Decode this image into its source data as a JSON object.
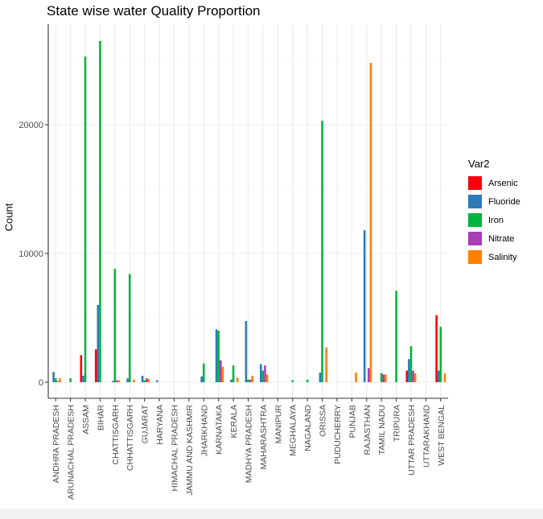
{
  "chart_data": {
    "type": "bar",
    "title": "State wise water Quality Proportion",
    "xlabel": "",
    "ylabel": "Count",
    "ylim": [
      0,
      28000
    ],
    "yticks": [
      0,
      10000,
      20000
    ],
    "ytick_labels": [
      "0",
      "10000",
      "20000"
    ],
    "grid": true,
    "legend_title": "Var2",
    "legend_position": "right",
    "categories": [
      "ANDHRA PRADESH",
      "ARUNACHAL PRADESH",
      "ASSAM",
      "BIHAR",
      "CHATTISGARH",
      "CHHATTISGARH",
      "GUJARAT",
      "HARYANA",
      "HIMACHAL PRADESH",
      "JAMMU AND KASHMIR",
      "JHARKHAND",
      "KARNATAKA",
      "KERALA",
      "MADHYA PRADESH",
      "MAHARASHTRA",
      "MANIPUR",
      "MEGHALAYA",
      "NAGALAND",
      "ORISSA",
      "PUDUCHERRY",
      "PUNJAB",
      "RAJASTHAN",
      "TAMIL NADU",
      "TRIPURA",
      "UTTAR PRADESH",
      "UTTARAKHAND",
      "WEST BENGAL"
    ],
    "series": [
      {
        "name": "Arsenic",
        "color": "#F8020D",
        "values": [
          0,
          0,
          2100,
          2550,
          0,
          0,
          0,
          0,
          0,
          0,
          0,
          0,
          0,
          0,
          0,
          0,
          0,
          0,
          0,
          0,
          0,
          0,
          0,
          0,
          900,
          0,
          5200
        ]
      },
      {
        "name": "Fluoride",
        "color": "#2C7BB6",
        "values": [
          800,
          0,
          500,
          6000,
          100,
          300,
          500,
          150,
          0,
          0,
          450,
          4100,
          200,
          4750,
          1400,
          0,
          0,
          0,
          750,
          0,
          0,
          11800,
          0,
          0,
          1800,
          0,
          900
        ]
      },
      {
        "name": "Iron",
        "color": "#00B43C",
        "values": [
          300,
          300,
          25300,
          26500,
          8800,
          8400,
          150,
          0,
          0,
          0,
          1450,
          4000,
          1300,
          200,
          900,
          0,
          150,
          200,
          20300,
          0,
          0,
          0,
          700,
          7100,
          2800,
          0,
          4300
        ]
      },
      {
        "name": "Nitrate",
        "color": "#A83EB4",
        "values": [
          80,
          0,
          0,
          0,
          150,
          0,
          300,
          0,
          0,
          0,
          0,
          1700,
          0,
          200,
          1300,
          0,
          0,
          0,
          0,
          0,
          0,
          1100,
          600,
          0,
          900,
          0,
          0
        ]
      },
      {
        "name": "Salinity",
        "color": "#FF7F00",
        "values": [
          300,
          0,
          0,
          0,
          150,
          200,
          250,
          0,
          0,
          0,
          0,
          1200,
          350,
          500,
          600,
          0,
          0,
          0,
          2700,
          0,
          750,
          24800,
          600,
          0,
          700,
          0,
          700
        ]
      }
    ]
  }
}
